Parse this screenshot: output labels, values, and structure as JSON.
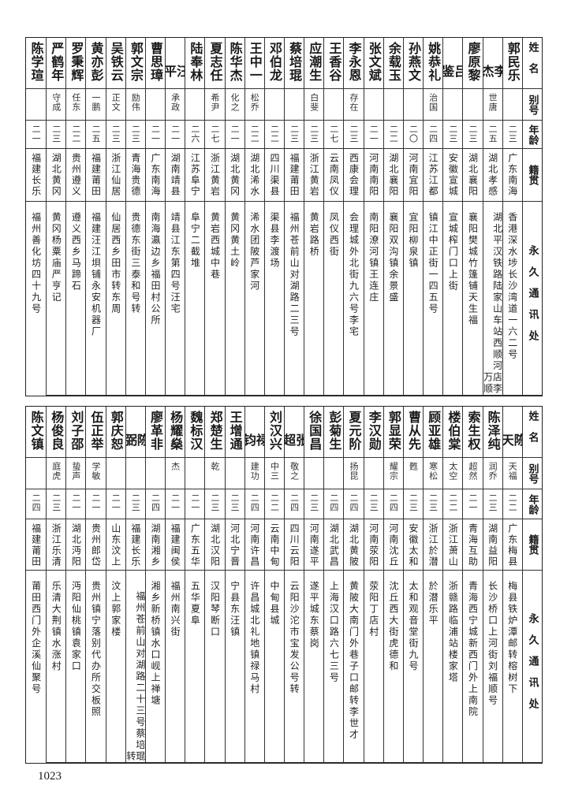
{
  "headers": {
    "name": "姓名",
    "alias": "别号",
    "age": "年龄",
    "origin": "籍贯",
    "address": "永久通讯处"
  },
  "top_rows": [
    {
      "name": "郭民乐",
      "alias": "",
      "age": "二三",
      "origin": "广东南海",
      "address": "香港深水埗长沙湾道一六二号"
    },
    {
      "name": "李杰",
      "alias": "世唐",
      "age": "二五",
      "origin": "湖北孝感",
      "address": "湖北平汉铁路陆家山车站西顺河店李万顺"
    },
    {
      "name": "廖原黎",
      "alias": "",
      "age": "二三",
      "origin": "湖北襄阳",
      "address": "襄阳樊城竹篷铺天生福"
    },
    {
      "name": "吕鉴",
      "alias": "",
      "age": "二三",
      "origin": "安徽宣城",
      "address": "宣城榨门口上街"
    },
    {
      "name": "姚恭礼",
      "alias": "治国",
      "age": "二四",
      "origin": "江苏江都",
      "address": "镇江中正街一四五号"
    },
    {
      "name": "孙燕文",
      "alias": "",
      "age": "二〇",
      "origin": "河南宜阳",
      "address": "宜阳柳泉镇"
    },
    {
      "name": "余载玉",
      "alias": "",
      "age": "二二",
      "origin": "湖北襄阳",
      "address": "襄阳双沟镇余景盛"
    },
    {
      "name": "张文斌",
      "alias": "",
      "age": "二一",
      "origin": "河南南阳",
      "address": "南阳潦河镇王连庄"
    },
    {
      "name": "李永恩",
      "alias": "存在",
      "age": "二三",
      "origin": "西康会理",
      "address": "会理城外北街九六号李宅"
    },
    {
      "name": "王香谷",
      "alias": "",
      "age": "二七",
      "origin": "云南凤仪",
      "address": "凤仪西街"
    },
    {
      "name": "应潮生",
      "alias": "白斐",
      "age": "二三",
      "origin": "浙江黄岩",
      "address": "黄岩路桥"
    },
    {
      "name": "蔡培琨",
      "alias": "",
      "age": "二三",
      "origin": "福建莆田",
      "address": "福州苍前山对湖路二三号"
    },
    {
      "name": "邓伯龙",
      "alias": "",
      "age": "二二",
      "origin": "四川渠县",
      "address": "渠县李渡场"
    },
    {
      "name": "王中一",
      "alias": "松乔",
      "age": "二二",
      "origin": "湖北浠水",
      "address": "浠水团陂芦家河"
    },
    {
      "name": "陈华杰",
      "alias": "化之",
      "age": "二一",
      "origin": "湖北黄冈",
      "address": "黄冈黄土岭"
    },
    {
      "name": "夏志任",
      "alias": "希尹",
      "age": "二七",
      "origin": "浙江黄岩",
      "address": "黄岩西城中巷"
    },
    {
      "name": "陆奉林",
      "alias": "",
      "age": "二六",
      "origin": "江苏阜宁",
      "address": "阜宁二截堆"
    },
    {
      "name": "汪平",
      "alias": "承政",
      "age": "二一",
      "origin": "湖南靖县",
      "address": "靖县江东第四号汪宅"
    },
    {
      "name": "曹思璋",
      "alias": "",
      "age": "二一",
      "origin": "广东南海",
      "address": "南海瀛边乡福田村公所"
    },
    {
      "name": "郭文宗",
      "alias": "励伟",
      "age": "二三",
      "origin": "青海贵德",
      "address": "贵德东街三泰和号转"
    },
    {
      "name": "吴铁云",
      "alias": "正文",
      "age": "二三",
      "origin": "浙江仙居",
      "address": "仙居西乡田市转东周"
    },
    {
      "name": "黄亦彭",
      "alias": "一鹏",
      "age": "二五",
      "origin": "福建莆田",
      "address": "福建汪江垻铺永安机器厂"
    },
    {
      "name": "罗秉辉",
      "alias": "任东",
      "age": "二二",
      "origin": "贵州遵义",
      "address": "遵义西乡马蹄石"
    },
    {
      "name": "严鹤年",
      "alias": "守成",
      "age": "二三",
      "origin": "湖北黄冈",
      "address": "黄冈杨粟庙严亨记"
    },
    {
      "name": "陈学瑄",
      "alias": "",
      "age": "二一",
      "origin": "福建长乐",
      "address": "福州善化坊四十九号"
    }
  ],
  "bottom_rows": [
    {
      "name": "陈天",
      "alias": "天福",
      "age": "二二",
      "origin": "广东梅县",
      "address": "梅县铁炉潭邮转榕树下"
    },
    {
      "name": "陈泽纯",
      "alias": "润乔",
      "age": "二三",
      "origin": "湖南益阳",
      "address": "长沙桥口上河街刘福顺号"
    },
    {
      "name": "索生权",
      "alias": "超然",
      "age": "二一",
      "origin": "青海互助",
      "address": "青海西宁城新西门外上南院"
    },
    {
      "name": "楼伯棠",
      "alias": "太空",
      "age": "二二",
      "origin": "浙江萧山",
      "address": "浙赣路临浦站楼家塔"
    },
    {
      "name": "顾亚雄",
      "alias": "寒松",
      "age": "二三",
      "origin": "浙江於潜",
      "address": "於潜乐平"
    },
    {
      "name": "曹从先",
      "alias": "甦",
      "age": "二三",
      "origin": "安徽太和",
      "address": "太和观音堂街九号"
    },
    {
      "name": "郭显荣",
      "alias": "耀宗",
      "age": "二四",
      "origin": "河南沈丘",
      "address": "沈丘西大街虎德和"
    },
    {
      "name": "李汉勋",
      "alias": "",
      "age": "二三",
      "origin": "河南荥阳",
      "address": "荥阳丁店村"
    },
    {
      "name": "夏元阶",
      "alias": "扬昆",
      "age": "二四",
      "origin": "湖北黄陂",
      "address": "黄陂大南门外巷子口邮转李世才"
    },
    {
      "name": "彭菊生",
      "alias": "",
      "age": "二四",
      "origin": "湖北武昌",
      "address": "上海汉口路六七三号"
    },
    {
      "name": "徐国昌",
      "alias": "",
      "age": "二三",
      "origin": "河南遂平",
      "address": "遂平城东蔡岗"
    },
    {
      "name": "张超",
      "alias": "敬之",
      "age": "二四",
      "origin": "四川云阳",
      "address": "云阳沙沱市宝发公号转"
    },
    {
      "name": "刘汉兴",
      "alias": "中三",
      "age": "二二",
      "origin": "云南中甸",
      "address": "中甸县城"
    },
    {
      "name": "禄钧",
      "alias": "建功",
      "age": "二四",
      "origin": "河南许昌",
      "address": "许昌城北礼地镇禄马村"
    },
    {
      "name": "王增通",
      "alias": "",
      "age": "二三",
      "origin": "河北宁晋",
      "address": "宁县东汪镇"
    },
    {
      "name": "郑楚生",
      "alias": "乾",
      "age": "二三",
      "origin": "湖北汉阳",
      "address": "汉阳琴断口"
    },
    {
      "name": "魏标汉",
      "alias": "",
      "age": "二一",
      "origin": "广东五华",
      "address": "五华夏阜"
    },
    {
      "name": "杨耀燊",
      "alias": "杰",
      "age": "二一",
      "origin": "福建闽侯",
      "address": "福州南兴街"
    },
    {
      "name": "廖革非",
      "alias": "",
      "age": "二四",
      "origin": "湖南湘乡",
      "address": "湘乡新桥镇水口岘上禅塘"
    },
    {
      "name": "陈弼",
      "alias": "",
      "age": "二三",
      "origin": "福建长乐",
      "address": "福州苍前山对湖路二十三号蔡培琨转"
    },
    {
      "name": "郭庆恕",
      "alias": "",
      "age": "二一",
      "origin": "山东汶上",
      "address": "汶上郭家楼"
    },
    {
      "name": "伍正举",
      "alias": "学敏",
      "age": "二一",
      "origin": "贵州郎岱",
      "address": "贵州镇宁落别代办所交板照"
    },
    {
      "name": "刘子邵",
      "alias": "蛰声",
      "age": "二一",
      "origin": "湖北沔阳",
      "address": "沔阳仙桃镇袁家口"
    },
    {
      "name": "杨俊良",
      "alias": "庭虎",
      "age": "二三",
      "origin": "浙江乐清",
      "address": "乐清大荆镇水涨村"
    },
    {
      "name": "陈文镇",
      "alias": "",
      "age": "二四",
      "origin": "福建莆田",
      "address": "莆田西门外企溪仙聚号"
    }
  ],
  "page_number": "1023"
}
